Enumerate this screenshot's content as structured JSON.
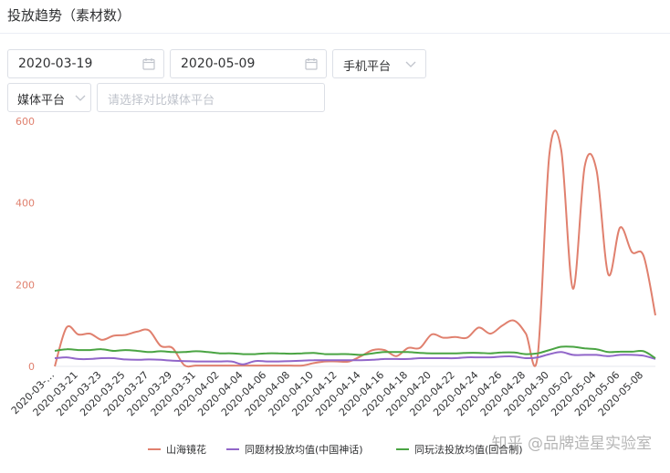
{
  "header": {
    "title": "投放趋势（素材数）"
  },
  "filters": {
    "start_date": "2020-03-19",
    "end_date": "2020-05-09",
    "platform_select": "手机平台",
    "media_select": "媒体平台",
    "compare_placeholder": "请选择对比媒体平台"
  },
  "watermark": "知乎 @品牌造星实验室",
  "colors": {
    "series1": "#e0806e",
    "series2": "#9166c9",
    "series3": "#4aa443",
    "axis_label": "#e0806e"
  },
  "chart_data": {
    "type": "line",
    "title": "",
    "xlabel": "",
    "ylabel": "",
    "ylim": [
      0,
      600
    ],
    "yticks": [
      0,
      200,
      400,
      600
    ],
    "grid": false,
    "legend": "bottom",
    "x": [
      "2020-03-19",
      "2020-03-20",
      "2020-03-21",
      "2020-03-22",
      "2020-03-23",
      "2020-03-24",
      "2020-03-25",
      "2020-03-26",
      "2020-03-27",
      "2020-03-28",
      "2020-03-29",
      "2020-03-30",
      "2020-03-31",
      "2020-04-01",
      "2020-04-02",
      "2020-04-03",
      "2020-04-04",
      "2020-04-05",
      "2020-04-06",
      "2020-04-07",
      "2020-04-08",
      "2020-04-09",
      "2020-04-10",
      "2020-04-11",
      "2020-04-12",
      "2020-04-13",
      "2020-04-14",
      "2020-04-15",
      "2020-04-16",
      "2020-04-17",
      "2020-04-18",
      "2020-04-19",
      "2020-04-20",
      "2020-04-21",
      "2020-04-22",
      "2020-04-23",
      "2020-04-24",
      "2020-04-25",
      "2020-04-26",
      "2020-04-27",
      "2020-04-28",
      "2020-04-29",
      "2020-04-30",
      "2020-05-01",
      "2020-05-02",
      "2020-05-03",
      "2020-05-04",
      "2020-05-05",
      "2020-05-06",
      "2020-05-07",
      "2020-05-08",
      "2020-05-09"
    ],
    "x_tick_labels": [
      "2020-03-…",
      "2020-03-21",
      "2020-03-23",
      "2020-03-25",
      "2020-03-27",
      "2020-03-29",
      "2020-03-31",
      "2020-04-02",
      "2020-04-04",
      "2020-04-06",
      "2020-04-08",
      "2020-04-10",
      "2020-04-12",
      "2020-04-14",
      "2020-04-16",
      "2020-04-18",
      "2020-04-20",
      "2020-04-22",
      "2020-04-24",
      "2020-04-26",
      "2020-04-28",
      "2020-04-30",
      "2020-05-02",
      "2020-05-04",
      "2020-05-06",
      "2020-05-08"
    ],
    "series": [
      {
        "name": "山海镜花",
        "values": [
          0,
          95,
          78,
          80,
          65,
          75,
          77,
          85,
          88,
          50,
          45,
          3,
          2,
          2,
          2,
          2,
          2,
          2,
          2,
          2,
          2,
          2,
          8,
          12,
          12,
          12,
          25,
          40,
          40,
          25,
          45,
          45,
          78,
          70,
          72,
          70,
          95,
          80,
          100,
          112,
          80,
          25,
          520,
          530,
          190,
          490,
          480,
          225,
          340,
          280,
          270,
          125
        ]
      },
      {
        "name": "同题材投放均值(中国神话)",
        "values": [
          20,
          22,
          18,
          18,
          20,
          20,
          17,
          16,
          17,
          16,
          14,
          13,
          12,
          12,
          12,
          12,
          5,
          13,
          12,
          12,
          13,
          14,
          15,
          15,
          15,
          15,
          15,
          16,
          18,
          18,
          18,
          20,
          20,
          20,
          20,
          22,
          22,
          22,
          24,
          24,
          20,
          22,
          30,
          35,
          28,
          28,
          28,
          25,
          28,
          28,
          26,
          18
        ]
      },
      {
        "name": "同玩法投放均值(回合制)",
        "values": [
          38,
          42,
          40,
          40,
          42,
          38,
          40,
          38,
          35,
          37,
          35,
          35,
          37,
          35,
          32,
          32,
          30,
          30,
          32,
          32,
          31,
          32,
          33,
          30,
          30,
          30,
          28,
          32,
          35,
          35,
          35,
          33,
          32,
          32,
          32,
          33,
          33,
          32,
          34,
          34,
          30,
          32,
          40,
          48,
          48,
          44,
          42,
          35,
          36,
          36,
          37,
          20
        ]
      }
    ]
  }
}
